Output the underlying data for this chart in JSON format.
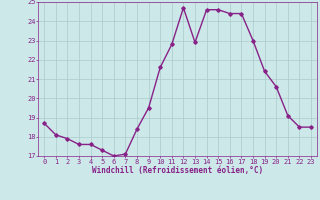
{
  "x": [
    0,
    1,
    2,
    3,
    4,
    5,
    6,
    7,
    8,
    9,
    10,
    11,
    12,
    13,
    14,
    15,
    16,
    17,
    18,
    19,
    20,
    21,
    22,
    23
  ],
  "y": [
    18.7,
    18.1,
    17.9,
    17.6,
    17.6,
    17.3,
    17.0,
    17.1,
    18.4,
    19.5,
    21.6,
    22.8,
    24.7,
    22.9,
    24.6,
    24.6,
    24.4,
    24.4,
    23.0,
    21.4,
    20.6,
    19.1,
    18.5,
    18.5
  ],
  "line_color": "#882288",
  "marker": "D",
  "marker_size": 1.8,
  "bg_color": "#cce8e8",
  "grid_color": "#aacccc",
  "xlabel": "Windchill (Refroidissement éolien,°C)",
  "xlabel_color": "#882288",
  "tick_color": "#882288",
  "ylim": [
    17,
    25
  ],
  "yticks": [
    17,
    18,
    19,
    20,
    21,
    22,
    23,
    24,
    25
  ],
  "xticks": [
    0,
    1,
    2,
    3,
    4,
    5,
    6,
    7,
    8,
    9,
    10,
    11,
    12,
    13,
    14,
    15,
    16,
    17,
    18,
    19,
    20,
    21,
    22,
    23
  ],
  "linewidth": 1.0,
  "tick_fontsize": 5.0,
  "xlabel_fontsize": 5.5
}
